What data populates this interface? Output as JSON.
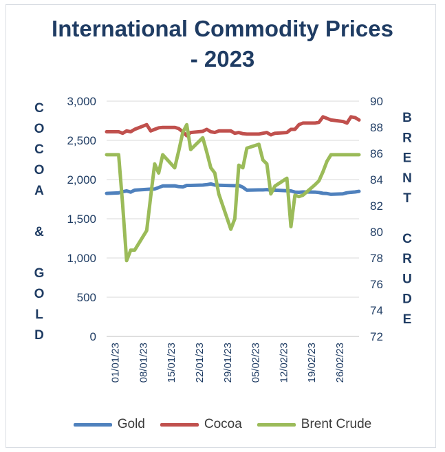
{
  "chart_data": {
    "type": "line",
    "title": "International Commodity Prices - 2023",
    "left_axis_label": "COCOA & GOLD",
    "right_axis_label": "BRENT CRUDE",
    "left_ylim": [
      0,
      3000
    ],
    "left_ticks": [
      "0",
      "500",
      "1,000",
      "1,500",
      "2,000",
      "2,500",
      "3,000"
    ],
    "right_ylim": [
      72,
      90
    ],
    "right_ticks": [
      "72",
      "74",
      "76",
      "78",
      "80",
      "82",
      "84",
      "86",
      "88",
      "90"
    ],
    "x_tick_labels": [
      "01/01/23",
      "08/01/23",
      "15/01/23",
      "22/01/23",
      "29/01/23",
      "05/02/23",
      "12/02/23",
      "19/02/23",
      "26/02/23"
    ],
    "x_range": [
      "2022-12-30",
      "2023-03-03"
    ],
    "grid": "horizontal",
    "legend_position": "bottom",
    "series": [
      {
        "name": "Gold",
        "axis": "left",
        "color": "#4f81bd",
        "x": [
          "2022-12-30",
          "2023-01-02",
          "2023-01-03",
          "2023-01-04",
          "2023-01-05",
          "2023-01-06",
          "2023-01-09",
          "2023-01-10",
          "2023-01-11",
          "2023-01-12",
          "2023-01-13",
          "2023-01-16",
          "2023-01-17",
          "2023-01-18",
          "2023-01-19",
          "2023-01-20",
          "2023-01-23",
          "2023-01-24",
          "2023-01-25",
          "2023-01-26",
          "2023-01-27",
          "2023-01-30",
          "2023-01-31",
          "2023-02-01",
          "2023-02-02",
          "2023-02-03",
          "2023-02-06",
          "2023-02-07",
          "2023-02-08",
          "2023-02-09",
          "2023-02-10",
          "2023-02-13",
          "2023-02-14",
          "2023-02-15",
          "2023-02-16",
          "2023-02-17",
          "2023-02-20",
          "2023-02-21",
          "2023-02-22",
          "2023-02-23",
          "2023-02-24",
          "2023-02-27",
          "2023-02-28",
          "2023-03-01",
          "2023-03-02",
          "2023-03-03"
        ],
        "values": [
          1824,
          1830,
          1845,
          1855,
          1840,
          1865,
          1875,
          1878,
          1880,
          1898,
          1918,
          1920,
          1910,
          1905,
          1925,
          1925,
          1930,
          1935,
          1945,
          1930,
          1928,
          1924,
          1922,
          1925,
          1902,
          1865,
          1868,
          1868,
          1872,
          1865,
          1865,
          1858,
          1855,
          1840,
          1838,
          1842,
          1840,
          1835,
          1825,
          1822,
          1812,
          1818,
          1832,
          1838,
          1842,
          1850
        ]
      },
      {
        "name": "Cocoa",
        "axis": "left",
        "color": "#c0504d",
        "x": [
          "2022-12-30",
          "2023-01-02",
          "2023-01-03",
          "2023-01-04",
          "2023-01-05",
          "2023-01-06",
          "2023-01-09",
          "2023-01-10",
          "2023-01-11",
          "2023-01-12",
          "2023-01-13",
          "2023-01-16",
          "2023-01-17",
          "2023-01-18",
          "2023-01-19",
          "2023-01-20",
          "2023-01-23",
          "2023-01-24",
          "2023-01-25",
          "2023-01-26",
          "2023-01-27",
          "2023-01-30",
          "2023-01-31",
          "2023-02-01",
          "2023-02-02",
          "2023-02-03",
          "2023-02-06",
          "2023-02-07",
          "2023-02-08",
          "2023-02-09",
          "2023-02-10",
          "2023-02-13",
          "2023-02-14",
          "2023-02-15",
          "2023-02-16",
          "2023-02-17",
          "2023-02-20",
          "2023-02-21",
          "2023-02-22",
          "2023-02-23",
          "2023-02-24",
          "2023-02-27",
          "2023-02-28",
          "2023-03-01",
          "2023-03-02",
          "2023-03-03"
        ],
        "values": [
          2610,
          2610,
          2590,
          2620,
          2610,
          2640,
          2700,
          2620,
          2640,
          2660,
          2665,
          2665,
          2650,
          2610,
          2560,
          2600,
          2615,
          2640,
          2610,
          2600,
          2620,
          2620,
          2590,
          2600,
          2585,
          2580,
          2580,
          2590,
          2600,
          2570,
          2590,
          2600,
          2640,
          2640,
          2700,
          2720,
          2720,
          2730,
          2800,
          2780,
          2760,
          2740,
          2720,
          2800,
          2790,
          2760
        ]
      },
      {
        "name": "Brent Crude",
        "axis": "right",
        "color": "#9bbb59",
        "x": [
          "2022-12-30",
          "2023-01-02",
          "2023-01-03",
          "2023-01-04",
          "2023-01-05",
          "2023-01-06",
          "2023-01-09",
          "2023-01-10",
          "2023-01-11",
          "2023-01-12",
          "2023-01-13",
          "2023-01-16",
          "2023-01-17",
          "2023-01-18",
          "2023-01-19",
          "2023-01-20",
          "2023-01-23",
          "2023-01-24",
          "2023-01-25",
          "2023-01-26",
          "2023-01-27",
          "2023-01-30",
          "2023-01-31",
          "2023-02-01",
          "2023-02-02",
          "2023-02-03",
          "2023-02-06",
          "2023-02-07",
          "2023-02-08",
          "2023-02-09",
          "2023-02-10",
          "2023-02-13",
          "2023-02-14",
          "2023-02-15",
          "2023-02-16",
          "2023-02-17",
          "2023-02-20",
          "2023-02-21",
          "2023-02-22",
          "2023-02-23",
          "2023-02-24",
          "2023-02-27",
          "2023-02-28",
          "2023-03-01",
          "2023-03-02",
          "2023-03-03"
        ],
        "values": [
          85.9,
          85.9,
          82.1,
          77.8,
          78.6,
          78.6,
          80.1,
          82.7,
          85.2,
          84.5,
          85.9,
          84.9,
          86.2,
          87.6,
          88.2,
          86.3,
          87.2,
          86.1,
          84.9,
          84.5,
          82.9,
          80.2,
          81.0,
          85.1,
          84.9,
          86.4,
          86.7,
          85.5,
          85.2,
          82.9,
          83.5,
          84.1,
          80.4,
          82.8,
          82.7,
          82.8,
          83.6,
          83.9,
          84.6,
          85.4,
          85.9,
          85.9,
          85.9,
          85.9,
          85.9,
          85.9
        ]
      }
    ]
  }
}
